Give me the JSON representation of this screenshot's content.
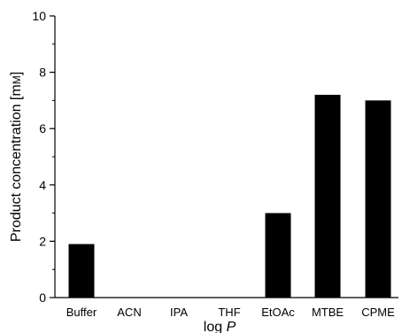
{
  "chart_data": {
    "type": "bar",
    "categories": [
      "Buffer",
      "ACN",
      "IPA",
      "THF",
      "EtOAc",
      "MTBE",
      "CPME"
    ],
    "values": [
      1.9,
      0,
      0,
      0,
      3.0,
      7.2,
      7.0
    ],
    "xlabel": "log P",
    "xlabel_main": "log ",
    "xlabel_italic": "P",
    "ylabel": "Product concentration [mM]",
    "ylabel_main": "Product concentration [m",
    "ylabel_smallcaps": "M",
    "ylabel_close": "]",
    "ylim": [
      0,
      10
    ],
    "yticks": [
      0,
      2,
      4,
      6,
      8,
      10
    ],
    "ytick_labels": [
      "0",
      "2",
      "4",
      "6",
      "8",
      "10"
    ],
    "bar_color": "#000000",
    "grid": false,
    "legend": false
  }
}
